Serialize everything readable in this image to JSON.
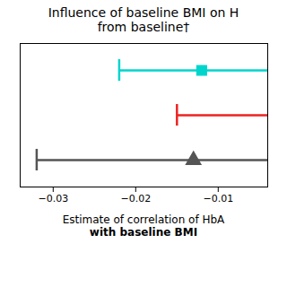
{
  "chart_data": {
    "type": "errorbar",
    "orientation": "horizontal",
    "title": "Influence of baseline BMI on H",
    "subtitle": "from baseline†",
    "xlabel": [
      "Estimate of correlation of HbA",
      "with baseline BMI"
    ],
    "categories": [
      null,
      null,
      null
    ],
    "values": [
      -0.012,
      null,
      -0.013
    ],
    "lower": [
      -0.022,
      -0.015,
      -0.032
    ],
    "upper": [
      -0.004,
      -0.004,
      -0.004
    ],
    "colors": [
      "#00D5CC",
      "#EE2222",
      "#555555"
    ],
    "markers": [
      "square",
      null,
      "triangle"
    ],
    "xlim": [
      -0.034,
      -0.004
    ],
    "xticks": [
      {
        "value": -0.03,
        "label": "−0.03"
      },
      {
        "value": -0.02,
        "label": "−0.02"
      },
      {
        "value": -0.01,
        "label": "−0.01"
      }
    ]
  }
}
